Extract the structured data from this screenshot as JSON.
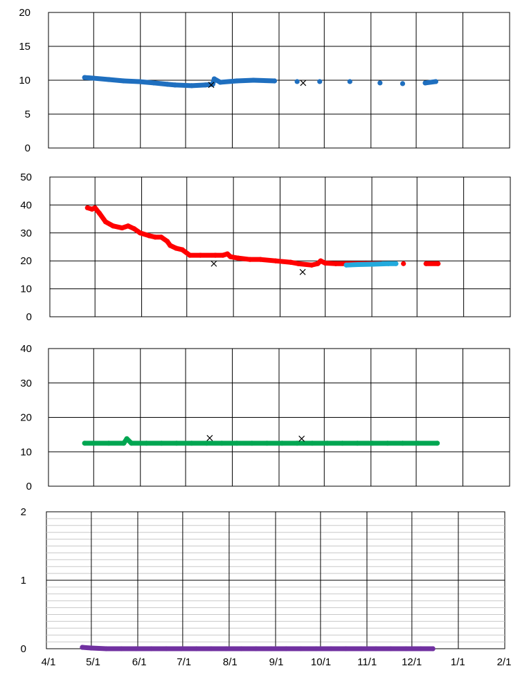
{
  "chart_data": [
    {
      "type": "scatter",
      "title": "",
      "xlabel": "",
      "ylabel": "",
      "ylim": [
        0,
        20
      ],
      "yticks": [
        "0",
        "5",
        "10",
        "15",
        "20"
      ],
      "x_ticks": [
        "4/1",
        "5/1",
        "6/1",
        "7/1",
        "8/1",
        "9/1",
        "10/1",
        "11/1",
        "12/1",
        "1/1",
        "2/1"
      ],
      "grid": true,
      "series": [
        {
          "color": "#1f6fbf",
          "points": [
            [
              24,
              10.4
            ],
            [
              30,
              10.3
            ],
            [
              40,
              10.1
            ],
            [
              50,
              9.9
            ],
            [
              60,
              9.8
            ],
            [
              70,
              9.6
            ],
            [
              79,
              9.4
            ],
            [
              84,
              9.3
            ],
            [
              95,
              9.2
            ],
            [
              104,
              9.3
            ],
            [
              109,
              9.4
            ],
            [
              110,
              10.2
            ],
            [
              114,
              9.7
            ],
            [
              125,
              9.9
            ],
            [
              136,
              10.0
            ],
            [
              150,
              9.9
            ],
            [
              165,
              9.8
            ],
            [
              180,
              9.8
            ],
            [
              200,
              9.8
            ],
            [
              220,
              9.6
            ],
            [
              235,
              9.5
            ],
            [
              250,
              9.6
            ],
            [
              257,
              9.8
            ]
          ]
        },
        {
          "color": "#000000",
          "marker": "x",
          "points": [
            [
              108,
              9.3
            ],
            [
              169,
              9.6
            ]
          ]
        }
      ]
    },
    {
      "type": "scatter",
      "title": "",
      "xlabel": "",
      "ylabel": "",
      "ylim": [
        0,
        50
      ],
      "yticks": [
        "0",
        "10",
        "20",
        "30",
        "40",
        "50"
      ],
      "x_ticks": [
        "4/1",
        "5/1",
        "6/1",
        "7/1",
        "8/1",
        "9/1",
        "10/1",
        "11/1",
        "12/1",
        "1/1",
        "2/1"
      ],
      "grid": true,
      "series": [
        {
          "color": "#ff0000",
          "points": [
            [
              25,
              39
            ],
            [
              28,
              38.5
            ],
            [
              30,
              39
            ],
            [
              33,
              37
            ],
            [
              37,
              34
            ],
            [
              42,
              32.5
            ],
            [
              48,
              31.8
            ],
            [
              52,
              32.5
            ],
            [
              56,
              31.5
            ],
            [
              60,
              30
            ],
            [
              66,
              29
            ],
            [
              70,
              28.5
            ],
            [
              74,
              28.5
            ],
            [
              78,
              27
            ],
            [
              80,
              25.5
            ],
            [
              84,
              24.5
            ],
            [
              88,
              24
            ],
            [
              93,
              22
            ],
            [
              100,
              22
            ],
            [
              110,
              22
            ],
            [
              115,
              22
            ],
            [
              118,
              22.5
            ],
            [
              120,
              21.5
            ],
            [
              125,
              21
            ],
            [
              133,
              20.5
            ],
            [
              140,
              20.5
            ],
            [
              150,
              20
            ],
            [
              160,
              19.5
            ],
            [
              165,
              19
            ],
            [
              174,
              18.5
            ],
            [
              178,
              19
            ],
            [
              180,
              20
            ],
            [
              183,
              19.2
            ],
            [
              190,
              19
            ],
            [
              200,
              19
            ],
            [
              210,
              19
            ],
            [
              220,
              19
            ],
            [
              235,
              19
            ],
            [
              250,
              19
            ],
            [
              258,
              19
            ]
          ]
        },
        {
          "color": "#22aadd",
          "points": [
            [
              197,
              18.5
            ],
            [
              205,
              18.7
            ],
            [
              215,
              18.8
            ],
            [
              225,
              19
            ],
            [
              230,
              19
            ]
          ]
        },
        {
          "color": "#000000",
          "marker": "x",
          "points": [
            [
              109,
              19
            ],
            [
              168,
              16
            ]
          ]
        }
      ]
    },
    {
      "type": "scatter",
      "title": "",
      "xlabel": "",
      "ylabel": "",
      "ylim": [
        0,
        40
      ],
      "yticks": [
        "0",
        "10",
        "20",
        "30",
        "40"
      ],
      "x_ticks": [
        "4/1",
        "5/1",
        "6/1",
        "7/1",
        "8/1",
        "9/1",
        "10/1",
        "11/1",
        "12/1",
        "1/1",
        "2/1"
      ],
      "grid": true,
      "series": [
        {
          "color": "#00a651",
          "points": [
            [
              24,
              12.5
            ],
            [
              30,
              12.5
            ],
            [
              40,
              12.5
            ],
            [
              50,
              12.5
            ],
            [
              52,
              13.8
            ],
            [
              55,
              12.5
            ],
            [
              65,
              12.5
            ],
            [
              75,
              12.5
            ],
            [
              85,
              12.5
            ],
            [
              95,
              12.5
            ],
            [
              105,
              12.5
            ],
            [
              115,
              12.5
            ],
            [
              125,
              12.5
            ],
            [
              135,
              12.5
            ],
            [
              145,
              12.5
            ],
            [
              155,
              12.5
            ],
            [
              165,
              12.5
            ],
            [
              175,
              12.5
            ],
            [
              185,
              12.5
            ],
            [
              195,
              12.5
            ],
            [
              205,
              12.5
            ],
            [
              215,
              12.5
            ],
            [
              225,
              12.5
            ],
            [
              235,
              12.5
            ],
            [
              245,
              12.5
            ],
            [
              258,
              12.5
            ]
          ]
        },
        {
          "color": "#000000",
          "marker": "x",
          "points": [
            [
              107,
              14
            ],
            [
              168,
              13.8
            ]
          ]
        }
      ]
    },
    {
      "type": "scatter",
      "title": "",
      "xlabel": "",
      "ylabel": "",
      "ylim": [
        0,
        2
      ],
      "yticks": [
        "0",
        "1",
        "2"
      ],
      "x_ticks": [
        "4/1",
        "5/1",
        "6/1",
        "7/1",
        "8/1",
        "9/1",
        "10/1",
        "11/1",
        "12/1",
        "1/1",
        "2/1"
      ],
      "grid": true,
      "minor_gridlines": true,
      "series": [
        {
          "color": "#7030a0",
          "points": [
            [
              24,
              0.02
            ],
            [
              30,
              0.01
            ],
            [
              40,
              0.0
            ],
            [
              50,
              0.0
            ],
            [
              60,
              0.0
            ],
            [
              70,
              0.0
            ],
            [
              80,
              0.0
            ],
            [
              90,
              0.0
            ],
            [
              100,
              0.0
            ],
            [
              110,
              0.0
            ],
            [
              120,
              0.0
            ],
            [
              130,
              0.0
            ],
            [
              140,
              0.0
            ],
            [
              150,
              0.0
            ],
            [
              160,
              0.0
            ],
            [
              170,
              0.0
            ],
            [
              180,
              0.0
            ],
            [
              190,
              0.0
            ],
            [
              200,
              0.0
            ],
            [
              210,
              0.0
            ],
            [
              220,
              0.0
            ],
            [
              230,
              0.0
            ],
            [
              240,
              0.0
            ],
            [
              250,
              0.0
            ],
            [
              258,
              0.0
            ]
          ]
        }
      ]
    }
  ]
}
